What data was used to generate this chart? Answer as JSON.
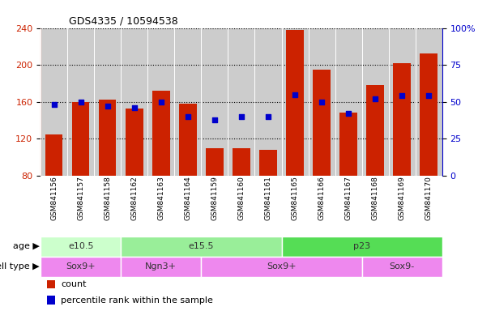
{
  "title": "GDS4335 / 10594538",
  "samples": [
    "GSM841156",
    "GSM841157",
    "GSM841158",
    "GSM841162",
    "GSM841163",
    "GSM841164",
    "GSM841159",
    "GSM841160",
    "GSM841161",
    "GSM841165",
    "GSM841166",
    "GSM841167",
    "GSM841168",
    "GSM841169",
    "GSM841170"
  ],
  "counts": [
    125,
    160,
    162,
    153,
    172,
    158,
    110,
    110,
    108,
    238,
    195,
    148,
    178,
    202,
    212
  ],
  "percentile_ranks": [
    48,
    50,
    47,
    46,
    50,
    40,
    38,
    40,
    40,
    55,
    50,
    42,
    52,
    54,
    54
  ],
  "ylim_left": [
    80,
    240
  ],
  "ylim_right": [
    0,
    100
  ],
  "yticks_left": [
    80,
    120,
    160,
    200,
    240
  ],
  "yticks_right": [
    0,
    25,
    50,
    75,
    100
  ],
  "yticklabels_right": [
    "0",
    "25",
    "50",
    "75",
    "100%"
  ],
  "bar_color": "#cc2200",
  "dot_color": "#0000cc",
  "age_groups": [
    {
      "label": "e10.5",
      "start": 0,
      "end": 3,
      "color": "#ccffcc"
    },
    {
      "label": "e15.5",
      "start": 3,
      "end": 9,
      "color": "#99ee99"
    },
    {
      "label": "p23",
      "start": 9,
      "end": 15,
      "color": "#55cc55"
    }
  ],
  "cell_type_groups": [
    {
      "label": "Sox9+",
      "start": 0,
      "end": 3,
      "color": "#ee88ee"
    },
    {
      "label": "Ngn3+",
      "start": 3,
      "end": 6,
      "color": "#ee88ee"
    },
    {
      "label": "Sox9+",
      "start": 6,
      "end": 12,
      "color": "#ee88ee"
    },
    {
      "label": "Sox9-",
      "start": 12,
      "end": 15,
      "color": "#ee88ee"
    }
  ],
  "left_label_color": "#cc2200",
  "right_label_color": "#0000cc",
  "bg_color": "#cccccc",
  "fig_bg": "#ffffff",
  "legend_count_label": "count",
  "legend_pct_label": "percentile rank within the sample",
  "age_label": "age",
  "cell_type_label": "cell type"
}
